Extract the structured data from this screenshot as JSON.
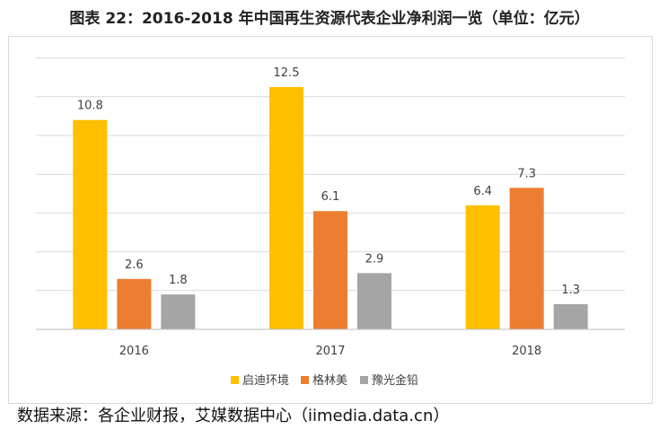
{
  "title": "图表 22：2016-2018 年中国再生资源代表企业净利润一览（单位：亿元）",
  "source": "数据来源：各企业财报，艾媒数据中心（iimedia.data.cn）",
  "chart_data": {
    "type": "bar",
    "title": "2016-2018 年中国再生资源代表企业净利润一览",
    "unit": "亿元",
    "categories": [
      "2016",
      "2017",
      "2018"
    ],
    "series": [
      {
        "name": "启迪环境",
        "color": "#FFC000",
        "values": [
          10.8,
          12.5,
          6.4
        ]
      },
      {
        "name": "格林美",
        "color": "#ED7D31",
        "values": [
          2.6,
          6.1,
          7.3
        ]
      },
      {
        "name": "豫光金铅",
        "color": "#A5A5A5",
        "values": [
          1.8,
          2.9,
          1.3
        ]
      }
    ],
    "ylim": [
      0,
      14
    ],
    "ytick_step": 2,
    "grid": true,
    "legend_position": "bottom",
    "xlabel": "",
    "ylabel": ""
  }
}
